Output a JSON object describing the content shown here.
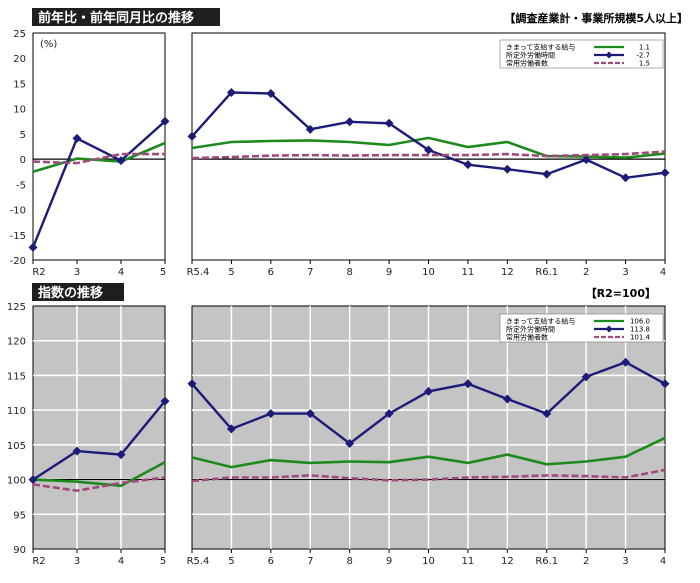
{
  "colors": {
    "wage": "#1e8a1e",
    "overtime": "#1c1c78",
    "employment": "#a04a7a",
    "panel_top_bg": "#ffffff",
    "panel_bottom_bg": "#c4c4c4",
    "grid_bottom": "#ffffff",
    "header_bg": "#1f1f1f"
  },
  "legend_labels": [
    "きまって支給する給与",
    "所定外労働時間",
    "常用労働者数"
  ],
  "chart_data": [
    {
      "type": "line",
      "title": "前年比・前年同月比の推移",
      "tag": "【調査産業計・事業所規模5人以上】",
      "unit_label": "(%)",
      "ylim": [
        -20,
        25
      ],
      "y_ticks": [
        -20,
        -15,
        -10,
        -5,
        0,
        5,
        10,
        15,
        20,
        25
      ],
      "grid": false,
      "legend_position": "top-right",
      "annual": {
        "categories": [
          "R2",
          "3",
          "4",
          "5"
        ],
        "series": [
          {
            "name": "きまって支給する給与",
            "values": [
              -2.5,
              0.1,
              -0.5,
              3.2
            ]
          },
          {
            "name": "所定外労働時間",
            "values": [
              -17.5,
              4.1,
              -0.3,
              7.5
            ]
          },
          {
            "name": "常用労働者数",
            "values": [
              -0.5,
              -0.8,
              1.0,
              1.0
            ]
          }
        ]
      },
      "monthly": {
        "categories": [
          "R5.4",
          "5",
          "6",
          "7",
          "8",
          "9",
          "10",
          "11",
          "12",
          "R6.1",
          "2",
          "3",
          "4"
        ],
        "series": [
          {
            "name": "きまって支給する給与",
            "values": [
              2.2,
              3.4,
              3.6,
              3.7,
              3.4,
              2.8,
              4.2,
              2.4,
              3.4,
              0.6,
              0.5,
              0.3,
              1.1
            ]
          },
          {
            "name": "所定外労働時間",
            "values": [
              4.5,
              13.2,
              13.0,
              5.9,
              7.4,
              7.1,
              1.8,
              -1.1,
              -2.0,
              -3.0,
              -0.1,
              -3.7,
              -2.7
            ]
          },
          {
            "name": "常用労働者数",
            "values": [
              0.2,
              0.4,
              0.7,
              0.8,
              0.7,
              0.8,
              0.8,
              0.8,
              1.0,
              0.6,
              0.8,
              1.0,
              1.5
            ]
          }
        ]
      },
      "legend_values": [
        "1.1",
        "-2.7",
        "1.5"
      ]
    },
    {
      "type": "line",
      "title": "指数の推移",
      "tag": "【R2=100】",
      "ylim": [
        90,
        125
      ],
      "y_ticks": [
        90,
        95,
        100,
        105,
        110,
        115,
        120,
        125
      ],
      "grid": true,
      "legend_position": "top-right",
      "annual": {
        "categories": [
          "R2",
          "3",
          "4",
          "5"
        ],
        "series": [
          {
            "name": "きまって支給する給与",
            "values": [
              100.0,
              99.7,
              99.1,
              102.5
            ]
          },
          {
            "name": "所定外労働時間",
            "values": [
              100.0,
              104.1,
              103.6,
              111.3
            ]
          },
          {
            "name": "常用労働者数",
            "values": [
              99.3,
              98.4,
              99.5,
              100.3
            ]
          }
        ]
      },
      "monthly": {
        "categories": [
          "R5.4",
          "5",
          "6",
          "7",
          "8",
          "9",
          "10",
          "11",
          "12",
          "R6.1",
          "2",
          "3",
          "4"
        ],
        "series": [
          {
            "name": "きまって支給する給与",
            "values": [
              103.2,
              101.8,
              102.8,
              102.4,
              102.6,
              102.5,
              103.3,
              102.4,
              103.6,
              102.2,
              102.6,
              103.3,
              106.0
            ]
          },
          {
            "name": "所定外労働時間",
            "values": [
              113.8,
              107.3,
              109.5,
              109.5,
              105.2,
              109.5,
              112.7,
              113.8,
              111.6,
              109.5,
              114.8,
              116.9,
              113.8
            ]
          },
          {
            "name": "常用労働者数",
            "values": [
              99.8,
              100.3,
              100.3,
              100.6,
              100.2,
              99.9,
              100.0,
              100.3,
              100.4,
              100.6,
              100.5,
              100.3,
              101.4
            ]
          }
        ]
      },
      "legend_values": [
        "106.0",
        "113.8",
        "101.4"
      ]
    }
  ]
}
